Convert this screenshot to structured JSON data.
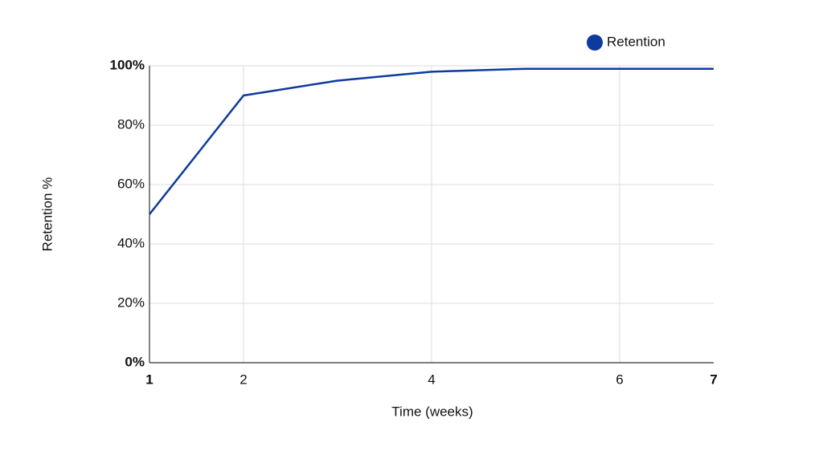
{
  "chart_data": {
    "type": "line",
    "x_label": "Time (weeks)",
    "y_label": "Retention %",
    "x": [
      1,
      2,
      3,
      4,
      5,
      6,
      7
    ],
    "series": [
      {
        "name": "Retention",
        "color": "#0d3a9e",
        "values": [
          50,
          90,
          95,
          98,
          99,
          99,
          99
        ]
      }
    ],
    "xlim": [
      1,
      7
    ],
    "xticks": [
      1,
      2,
      4,
      6,
      7
    ],
    "ylim": [
      0,
      100
    ],
    "yticks": [
      {
        "value": 0,
        "label": "0%"
      },
      {
        "value": 20,
        "label": "20%"
      },
      {
        "value": 40,
        "label": "40%"
      },
      {
        "value": 60,
        "label": "60%"
      },
      {
        "value": 80,
        "label": "80%"
      },
      {
        "value": 100,
        "label": "100%"
      }
    ],
    "grid": true,
    "legend": "top-right"
  }
}
